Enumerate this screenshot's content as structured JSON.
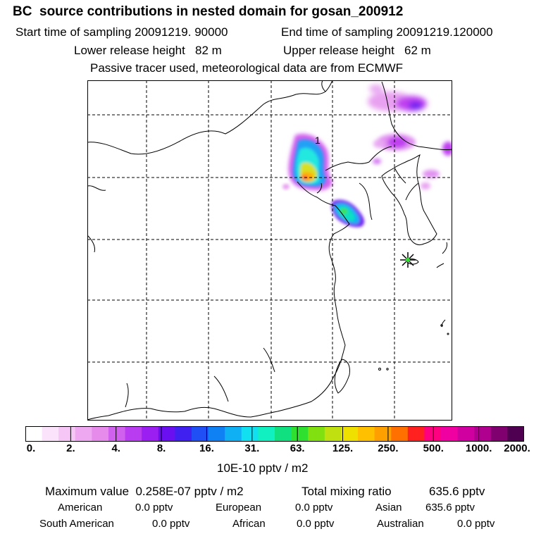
{
  "header": {
    "title": "BC  source contributions in nested domain for gosan_200912",
    "start_sampling": "Start time of sampling 20091219. 90000",
    "end_sampling": "End time of sampling 20091219.120000",
    "lower_release": "Lower release height   82 m",
    "upper_release": "Upper release height   62 m",
    "tracer_info": "Passive tracer used, meteorological data are from ECMWF"
  },
  "chart_data": {
    "type": "heatmap",
    "title": "BC  source contributions in nested domain for gosan_200912",
    "colorbar_ticks": [
      "0.",
      "2.",
      "4.",
      "8.",
      "16.",
      "31.",
      "63.",
      "125.",
      "250.",
      "500.",
      "1000.",
      "2000."
    ],
    "colorbar_unit": "10E-10 pptv / m2",
    "colors": [
      "#ffffff",
      "#fbe3fb",
      "#f5c6f6",
      "#eea8f1",
      "#e68aec",
      "#d060ee",
      "#b93cf0",
      "#9a1ff0",
      "#6a10f0",
      "#4020f0",
      "#2050f5",
      "#1080f5",
      "#10b0f5",
      "#10e0f0",
      "#10f0c0",
      "#10e080",
      "#30e030",
      "#80e010",
      "#c0e010",
      "#f0e000",
      "#ffc000",
      "#ffa000",
      "#ff7000",
      "#ff2020",
      "#ff0080",
      "#f000a0",
      "#d000a0",
      "#b00090",
      "#800070",
      "#500050"
    ],
    "contour_label": "1",
    "receptor_marker": "gosan-receptor"
  },
  "summary": {
    "maximum": "Maximum value  0.258E-07 pptv / m2",
    "total_label": "Total mixing ratio",
    "total_value": "635.6 pptv"
  },
  "contributions": {
    "american_label": "American",
    "american_value": "0.0 pptv",
    "european_label": "European",
    "european_value": "0.0 pptv",
    "asian_label": "Asian",
    "asian_value": "635.6 pptv",
    "south_american_label": "South American",
    "south_american_value": "0.0 pptv",
    "african_label": "African",
    "african_value": "0.0 pptv",
    "australian_label": "Australian",
    "australian_value": "0.0 pptv"
  }
}
